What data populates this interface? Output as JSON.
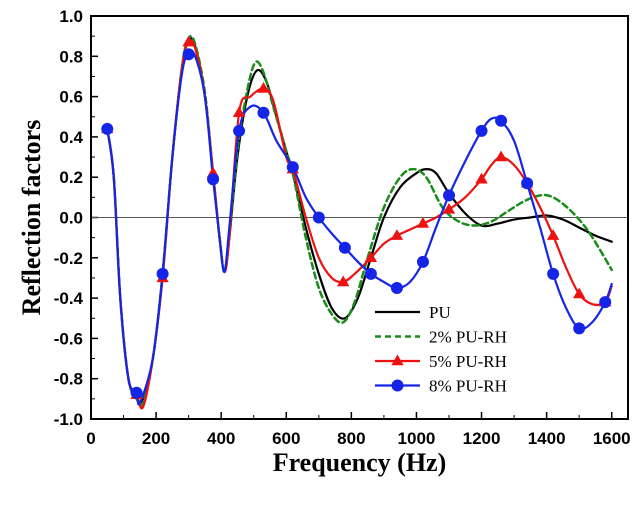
{
  "chart_data": {
    "type": "line",
    "xlabel": "Frequency (Hz)",
    "ylabel": "Reflection factors",
    "xlim": [
      0,
      1650
    ],
    "ylim": [
      -1.0,
      1.0
    ],
    "xticks": [
      0,
      200,
      400,
      600,
      800,
      1000,
      1200,
      1400,
      1600
    ],
    "yticks": [
      -1.0,
      -0.8,
      -0.6,
      -0.4,
      -0.2,
      0.0,
      0.2,
      0.4,
      0.6,
      0.8,
      1.0
    ],
    "tick_format_y": 1,
    "zero_line": true,
    "grid": false,
    "legend_position": "bottom-right",
    "series": [
      {
        "name": "PU",
        "color": "#000000",
        "line_style": "solid",
        "marker": "none",
        "points": [
          [
            50,
            0.44
          ],
          [
            70,
            0.2
          ],
          [
            90,
            -0.4
          ],
          [
            115,
            -0.8
          ],
          [
            140,
            -0.9
          ],
          [
            160,
            -0.9
          ],
          [
            190,
            -0.7
          ],
          [
            220,
            -0.28
          ],
          [
            250,
            0.3
          ],
          [
            280,
            0.75
          ],
          [
            300,
            0.88
          ],
          [
            320,
            0.85
          ],
          [
            350,
            0.6
          ],
          [
            375,
            0.22
          ],
          [
            395,
            -0.1
          ],
          [
            410,
            -0.27
          ],
          [
            425,
            -0.1
          ],
          [
            450,
            0.3
          ],
          [
            480,
            0.6
          ],
          [
            510,
            0.73
          ],
          [
            540,
            0.67
          ],
          [
            570,
            0.5
          ],
          [
            600,
            0.33
          ],
          [
            620,
            0.22
          ],
          [
            660,
            -0.05
          ],
          [
            700,
            -0.28
          ],
          [
            740,
            -0.45
          ],
          [
            780,
            -0.5
          ],
          [
            820,
            -0.4
          ],
          [
            860,
            -0.2
          ],
          [
            900,
            0.0
          ],
          [
            950,
            0.15
          ],
          [
            1000,
            0.22
          ],
          [
            1030,
            0.24
          ],
          [
            1060,
            0.22
          ],
          [
            1100,
            0.12
          ],
          [
            1150,
            0.02
          ],
          [
            1200,
            -0.04
          ],
          [
            1250,
            -0.03
          ],
          [
            1300,
            -0.01
          ],
          [
            1350,
            0.0
          ],
          [
            1400,
            0.01
          ],
          [
            1450,
            -0.01
          ],
          [
            1500,
            -0.05
          ],
          [
            1550,
            -0.09
          ],
          [
            1600,
            -0.12
          ]
        ]
      },
      {
        "name": "2% PU-RH",
        "color": "#1a8c1a",
        "line_style": "dashed",
        "marker": "none",
        "points": [
          [
            50,
            0.44
          ],
          [
            70,
            0.2
          ],
          [
            90,
            -0.4
          ],
          [
            115,
            -0.8
          ],
          [
            140,
            -0.9
          ],
          [
            160,
            -0.92
          ],
          [
            190,
            -0.7
          ],
          [
            220,
            -0.28
          ],
          [
            250,
            0.3
          ],
          [
            280,
            0.75
          ],
          [
            300,
            0.89
          ],
          [
            320,
            0.86
          ],
          [
            350,
            0.62
          ],
          [
            375,
            0.22
          ],
          [
            395,
            -0.1
          ],
          [
            410,
            -0.27
          ],
          [
            425,
            -0.1
          ],
          [
            450,
            0.33
          ],
          [
            480,
            0.63
          ],
          [
            505,
            0.77
          ],
          [
            530,
            0.72
          ],
          [
            560,
            0.55
          ],
          [
            600,
            0.33
          ],
          [
            620,
            0.22
          ],
          [
            660,
            -0.1
          ],
          [
            700,
            -0.35
          ],
          [
            740,
            -0.48
          ],
          [
            775,
            -0.52
          ],
          [
            810,
            -0.42
          ],
          [
            850,
            -0.2
          ],
          [
            900,
            0.05
          ],
          [
            950,
            0.2
          ],
          [
            990,
            0.24
          ],
          [
            1030,
            0.2
          ],
          [
            1080,
            0.05
          ],
          [
            1130,
            -0.02
          ],
          [
            1180,
            -0.04
          ],
          [
            1230,
            -0.02
          ],
          [
            1280,
            0.03
          ],
          [
            1330,
            0.08
          ],
          [
            1380,
            0.11
          ],
          [
            1420,
            0.1
          ],
          [
            1470,
            0.04
          ],
          [
            1520,
            -0.05
          ],
          [
            1560,
            -0.15
          ],
          [
            1600,
            -0.26
          ]
        ]
      },
      {
        "name": "5% PU-RH",
        "color": "#ee1111",
        "line_style": "solid",
        "marker": "triangle",
        "points": [
          [
            50,
            0.44
          ],
          [
            70,
            0.2
          ],
          [
            90,
            -0.4
          ],
          [
            115,
            -0.8
          ],
          [
            140,
            -0.88
          ],
          [
            160,
            -0.94
          ],
          [
            190,
            -0.7
          ],
          [
            220,
            -0.3
          ],
          [
            250,
            0.3
          ],
          [
            280,
            0.75
          ],
          [
            300,
            0.87
          ],
          [
            320,
            0.84
          ],
          [
            350,
            0.6
          ],
          [
            375,
            0.22
          ],
          [
            395,
            -0.1
          ],
          [
            410,
            -0.27
          ],
          [
            425,
            -0.1
          ],
          [
            455,
            0.52
          ],
          [
            490,
            0.6
          ],
          [
            530,
            0.64
          ],
          [
            560,
            0.58
          ],
          [
            600,
            0.3
          ],
          [
            620,
            0.24
          ],
          [
            660,
            0.0
          ],
          [
            700,
            -0.2
          ],
          [
            740,
            -0.3
          ],
          [
            775,
            -0.32
          ],
          [
            810,
            -0.28
          ],
          [
            860,
            -0.2
          ],
          [
            900,
            -0.13
          ],
          [
            940,
            -0.09
          ],
          [
            980,
            -0.06
          ],
          [
            1020,
            -0.03
          ],
          [
            1060,
            0.0
          ],
          [
            1100,
            0.04
          ],
          [
            1150,
            0.1
          ],
          [
            1200,
            0.19
          ],
          [
            1230,
            0.26
          ],
          [
            1260,
            0.3
          ],
          [
            1300,
            0.26
          ],
          [
            1340,
            0.17
          ],
          [
            1380,
            0.05
          ],
          [
            1420,
            -0.09
          ],
          [
            1460,
            -0.25
          ],
          [
            1500,
            -0.38
          ],
          [
            1540,
            -0.43
          ],
          [
            1580,
            -0.42
          ],
          [
            1600,
            -0.34
          ]
        ]
      },
      {
        "name": "8% PU-RH",
        "color": "#1525e8",
        "line_style": "solid",
        "marker": "circle",
        "points": [
          [
            50,
            0.44
          ],
          [
            70,
            0.2
          ],
          [
            90,
            -0.4
          ],
          [
            115,
            -0.8
          ],
          [
            140,
            -0.87
          ],
          [
            150,
            -0.92
          ],
          [
            190,
            -0.7
          ],
          [
            220,
            -0.28
          ],
          [
            250,
            0.3
          ],
          [
            280,
            0.72
          ],
          [
            300,
            0.81
          ],
          [
            320,
            0.8
          ],
          [
            350,
            0.6
          ],
          [
            375,
            0.19
          ],
          [
            395,
            -0.1
          ],
          [
            410,
            -0.27
          ],
          [
            425,
            -0.05
          ],
          [
            455,
            0.43
          ],
          [
            490,
            0.55
          ],
          [
            530,
            0.52
          ],
          [
            570,
            0.38
          ],
          [
            620,
            0.25
          ],
          [
            660,
            0.1
          ],
          [
            700,
            0.0
          ],
          [
            740,
            -0.08
          ],
          [
            780,
            -0.15
          ],
          [
            820,
            -0.22
          ],
          [
            860,
            -0.28
          ],
          [
            900,
            -0.32
          ],
          [
            940,
            -0.35
          ],
          [
            980,
            -0.32
          ],
          [
            1020,
            -0.22
          ],
          [
            1060,
            -0.05
          ],
          [
            1100,
            0.11
          ],
          [
            1150,
            0.28
          ],
          [
            1200,
            0.43
          ],
          [
            1230,
            0.49
          ],
          [
            1260,
            0.48
          ],
          [
            1300,
            0.38
          ],
          [
            1340,
            0.17
          ],
          [
            1380,
            -0.05
          ],
          [
            1420,
            -0.28
          ],
          [
            1460,
            -0.45
          ],
          [
            1500,
            -0.55
          ],
          [
            1540,
            -0.52
          ],
          [
            1580,
            -0.42
          ],
          [
            1600,
            -0.33
          ]
        ]
      }
    ],
    "markers": {
      "5% PU-RH": [
        [
          50,
          0.44
        ],
        [
          140,
          -0.88
        ],
        [
          220,
          -0.3
        ],
        [
          300,
          0.87
        ],
        [
          375,
          0.22
        ],
        [
          455,
          0.52
        ],
        [
          530,
          0.64
        ],
        [
          620,
          0.24
        ],
        [
          775,
          -0.32
        ],
        [
          860,
          -0.2
        ],
        [
          940,
          -0.09
        ],
        [
          1020,
          -0.03
        ],
        [
          1100,
          0.04
        ],
        [
          1200,
          0.19
        ],
        [
          1260,
          0.3
        ],
        [
          1340,
          0.17
        ],
        [
          1420,
          -0.09
        ],
        [
          1500,
          -0.38
        ],
        [
          1580,
          -0.42
        ]
      ],
      "8% PU-RH": [
        [
          50,
          0.44
        ],
        [
          140,
          -0.87
        ],
        [
          220,
          -0.28
        ],
        [
          300,
          0.81
        ],
        [
          375,
          0.19
        ],
        [
          455,
          0.43
        ],
        [
          530,
          0.52
        ],
        [
          620,
          0.25
        ],
        [
          700,
          0.0
        ],
        [
          780,
          -0.15
        ],
        [
          860,
          -0.28
        ],
        [
          940,
          -0.35
        ],
        [
          1020,
          -0.22
        ],
        [
          1100,
          0.11
        ],
        [
          1200,
          0.43
        ],
        [
          1260,
          0.48
        ],
        [
          1340,
          0.17
        ],
        [
          1420,
          -0.28
        ],
        [
          1500,
          -0.55
        ],
        [
          1580,
          -0.42
        ]
      ]
    }
  }
}
